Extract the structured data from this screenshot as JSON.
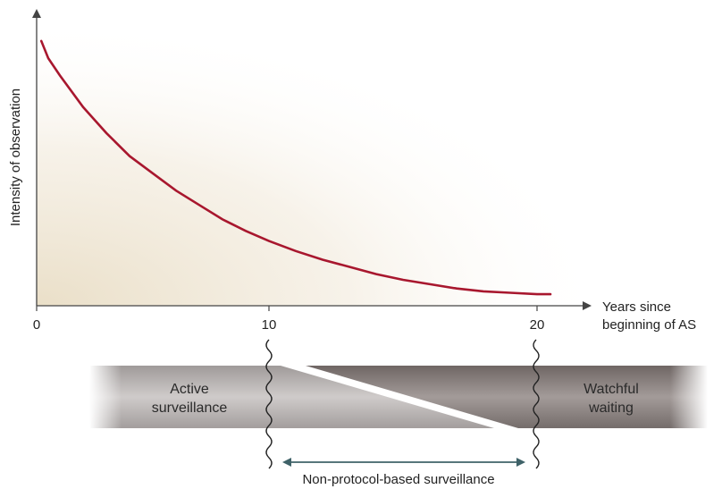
{
  "chart_data": {
    "type": "line",
    "ylabel": "Intensity of observation",
    "xlabel_lines": [
      "Years since",
      "beginning of AS"
    ],
    "x_ticks": [
      "0",
      "10",
      "20"
    ],
    "x_tick_values": [
      0,
      10,
      20
    ],
    "xlim": [
      0,
      23
    ],
    "ylim": [
      0,
      1
    ],
    "y_ticks_shown": false,
    "grid": false,
    "series": [
      {
        "color": "#a8172e",
        "x": [
          0.2,
          0.5,
          1,
          2,
          3,
          4,
          5,
          6,
          7,
          8,
          9,
          10,
          11,
          12,
          13,
          14,
          15,
          16,
          17,
          18,
          19,
          20,
          20.5
        ],
        "y": [
          0.92,
          0.86,
          0.8,
          0.69,
          0.6,
          0.52,
          0.46,
          0.4,
          0.35,
          0.3,
          0.26,
          0.225,
          0.19,
          0.16,
          0.135,
          0.11,
          0.09,
          0.075,
          0.06,
          0.05,
          0.045,
          0.04,
          0.04
        ]
      }
    ]
  },
  "bands": {
    "active_lines": [
      "Active",
      "surveillance"
    ],
    "watchful_lines": [
      "Watchful",
      "waiting"
    ],
    "range_label": "Non-protocol-based surveillance"
  },
  "colors": {
    "curve": "#a8172e",
    "active_band": "#bcb8b6",
    "watchful_band": "#8f8684",
    "range_arrow": "#3f6268",
    "axes": "#444444"
  }
}
